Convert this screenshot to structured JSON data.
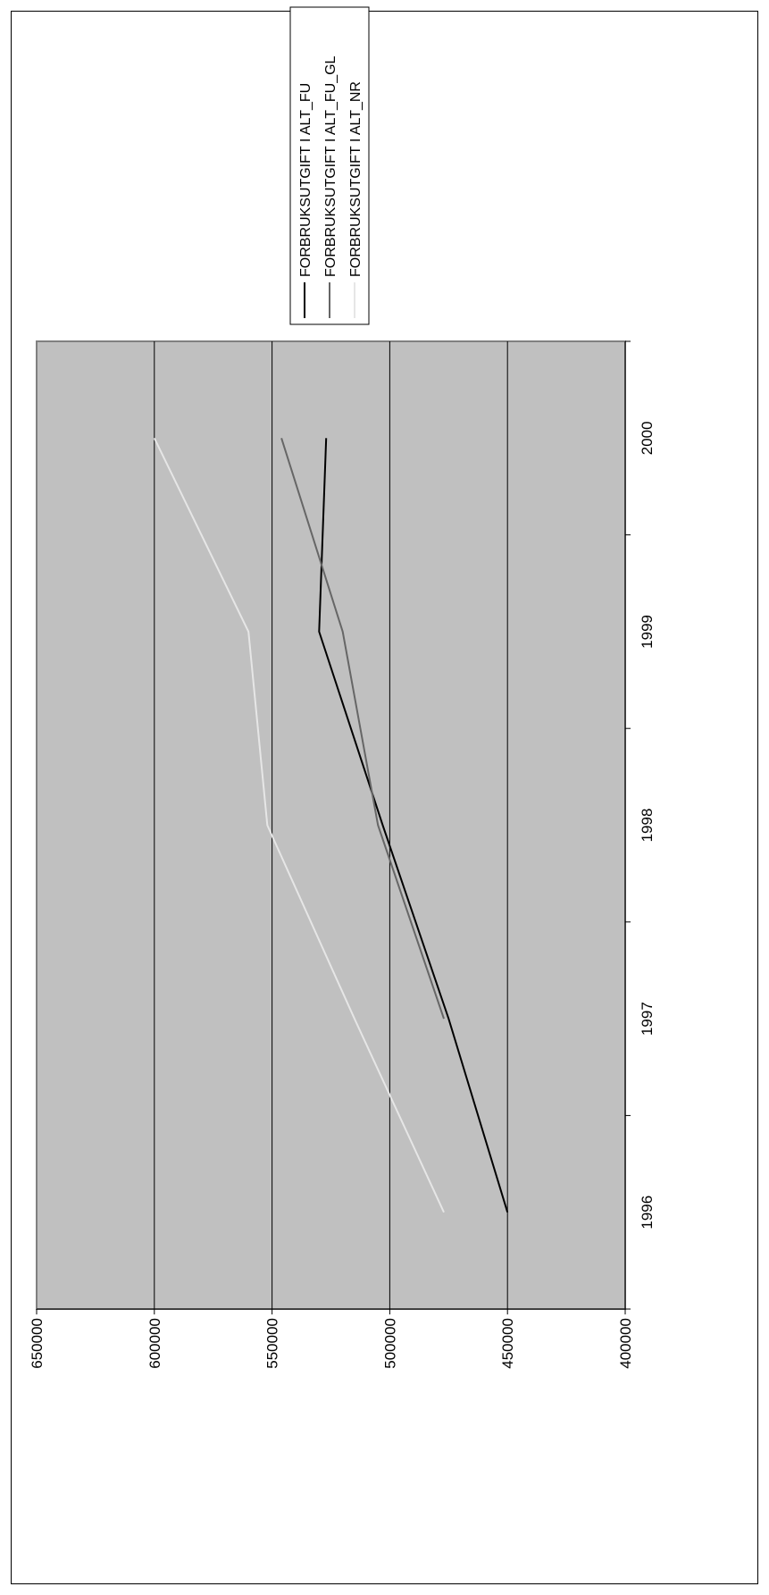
{
  "chart_data": {
    "type": "line",
    "orientation": "rotated-90-clockwise",
    "title": "",
    "xlabel": "",
    "ylabel": "",
    "x": [
      "1996",
      "1997",
      "1998",
      "1999",
      "2000"
    ],
    "ylim": [
      400000,
      650000
    ],
    "yticks": [
      "400000",
      "450000",
      "500000",
      "550000",
      "600000",
      "650000"
    ],
    "grid": true,
    "legend_position": "top-right",
    "plot_background": "#c0c0c0",
    "series": [
      {
        "name": "FORBRUKSUTGIFT I ALT_FU",
        "color": "#000000",
        "values": [
          450000,
          475000,
          503000,
          530000,
          527000
        ]
      },
      {
        "name": "FORBRUKSUTGIFT I ALT_FU_GL",
        "color": "#666666",
        "values": [
          null,
          477000,
          505000,
          520000,
          546000
        ]
      },
      {
        "name": "FORBRUKSUTGIFT I ALT_NR",
        "color": "#e6e6e6",
        "values": [
          477000,
          515000,
          552000,
          560000,
          600000
        ]
      }
    ]
  }
}
